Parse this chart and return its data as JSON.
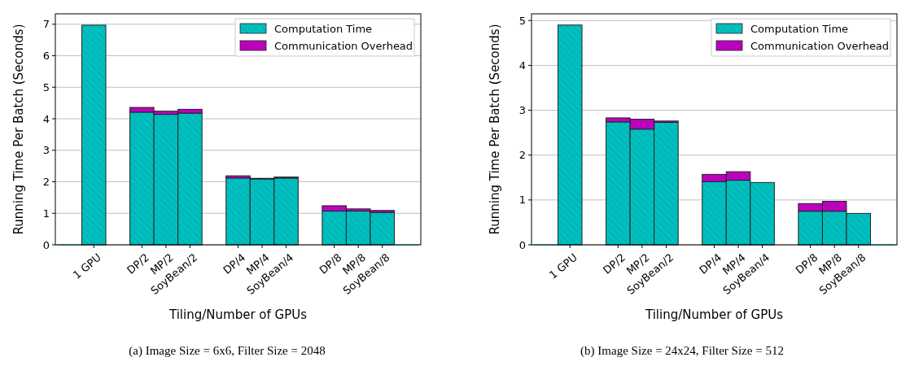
{
  "chart_data": [
    {
      "type": "bar",
      "title": "(a) Image Size = 6x6, Filter Size = 2048",
      "xlabel": "Tiling/Number of GPUs",
      "ylabel": "Running Time Per Batch (Seconds)",
      "stacked": true,
      "categories": [
        null,
        "1 GPU",
        null,
        "DP/2",
        "MP/2",
        "SoyBean/2",
        null,
        "DP/4",
        "MP/4",
        "SoyBean/4",
        null,
        "DP/8",
        "MP/8",
        "SoyBean/8",
        null
      ],
      "series": [
        {
          "name": "Computation Time",
          "color": "#00bfbf",
          "values": [
            0,
            6.97,
            null,
            4.21,
            4.14,
            4.18,
            null,
            2.12,
            2.09,
            2.12,
            null,
            1.07,
            1.07,
            1.03,
            0
          ]
        },
        {
          "name": "Communication Overhead",
          "color": "#bf00bf",
          "values": [
            0,
            0,
            null,
            0.15,
            0.1,
            0.12,
            null,
            0.07,
            0.02,
            0.03,
            null,
            0.17,
            0.07,
            0.06,
            0
          ]
        }
      ],
      "ylim": [
        0,
        7.33
      ],
      "yticks": [
        0,
        1,
        2,
        3,
        4,
        5,
        6,
        7
      ],
      "grid": "y",
      "legend": "top right"
    },
    {
      "type": "bar",
      "title": "(b) Image Size = 24x24, Filter Size = 512",
      "xlabel": "Tiling/Number of GPUs",
      "ylabel": "Running Time Per Batch (Seconds)",
      "stacked": true,
      "categories": [
        null,
        "1 GPU",
        null,
        "DP/2",
        "MP/2",
        "SoyBean/2",
        null,
        "DP/4",
        "MP/4",
        "SoyBean/4",
        null,
        "DP/8",
        "MP/8",
        "SoyBean/8",
        null
      ],
      "series": [
        {
          "name": "Computation Time",
          "color": "#00bfbf",
          "values": [
            0,
            4.9,
            null,
            2.74,
            2.58,
            2.73,
            null,
            1.41,
            1.44,
            1.39,
            null,
            0.75,
            0.75,
            0.7,
            0
          ]
        },
        {
          "name": "Communication Overhead",
          "color": "#bf00bf",
          "values": [
            0,
            0,
            null,
            0.09,
            0.22,
            0.03,
            null,
            0.16,
            0.19,
            0,
            null,
            0.17,
            0.22,
            0,
            0
          ]
        }
      ],
      "ylim": [
        0,
        5.15
      ],
      "yticks": [
        0,
        1,
        2,
        3,
        4,
        5
      ],
      "grid": "y",
      "legend": "top right"
    }
  ]
}
